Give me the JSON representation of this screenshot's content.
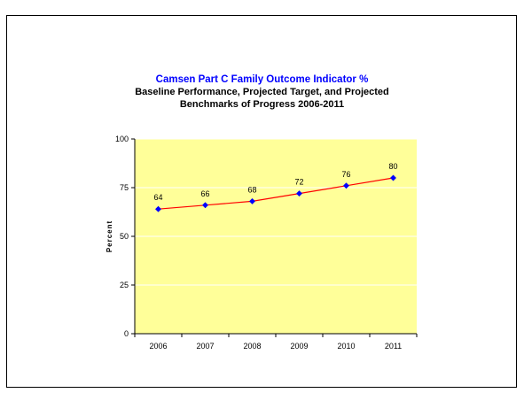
{
  "chart_data": {
    "type": "line",
    "title": "Camsen Part C Family Outcome Indicator %",
    "subtitle_lines": [
      "Baseline Performance, Projected Target, and Projected",
      "Benchmarks of Progress 2006-2011"
    ],
    "xlabel": "",
    "ylabel": "Percent",
    "categories": [
      "2006",
      "2007",
      "2008",
      "2009",
      "2010",
      "2011"
    ],
    "series": [
      {
        "values": [
          64,
          66,
          68,
          72,
          76,
          80
        ],
        "line_color": "#ff0000",
        "marker_color": "#0000ff"
      }
    ],
    "ylim": [
      0,
      100
    ],
    "yticks": [
      0,
      25,
      50,
      75,
      100
    ],
    "grid": true,
    "legend": "none",
    "plot_background": "#ffff99",
    "title_color": "#0000ff"
  }
}
